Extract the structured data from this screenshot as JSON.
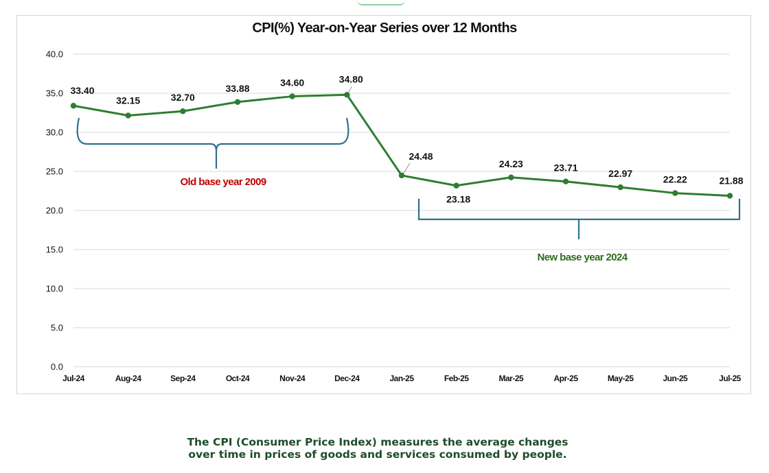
{
  "chart_data": {
    "type": "line",
    "title": "CPI(%) Year-on-Year Series over 12 Months",
    "categories": [
      "Jul-24",
      "Aug-24",
      "Sep-24",
      "Oct-24",
      "Nov-24",
      "Dec-24",
      "Jan-25",
      "Feb-25",
      "Mar-25",
      "Apr-25",
      "May-25",
      "Jun-25",
      "Jul-25"
    ],
    "series": [
      {
        "values": [
          33.4,
          32.15,
          32.7,
          33.88,
          34.6,
          34.8,
          24.48,
          23.18,
          24.23,
          23.71,
          22.97,
          22.22,
          21.88
        ],
        "color": "#2e7d32"
      }
    ],
    "data_labels": [
      "33.40",
      "32.15",
      "32.70",
      "33.88",
      "34.60",
      "34.80",
      "24.48",
      "23.18",
      "24.23",
      "23.71",
      "22.97",
      "22.22",
      "21.88"
    ],
    "y_ticks": [
      "0.0",
      "5.0",
      "10.0",
      "15.0",
      "20.0",
      "25.0",
      "30.0",
      "35.0",
      "40.0"
    ],
    "ylim": [
      0,
      40
    ],
    "grid": "horizontal",
    "legend": "none",
    "annotations": [
      {
        "text": "Old base year 2009",
        "color": "#c00000"
      },
      {
        "text": "New base year 2024",
        "color": "#2f6b1f"
      }
    ],
    "bracket_color": "#2e6f8e"
  },
  "caption": {
    "line1": "The CPI (Consumer Price Index) measures the average changes",
    "line2": "over time in prices of goods and services consumed by people."
  }
}
